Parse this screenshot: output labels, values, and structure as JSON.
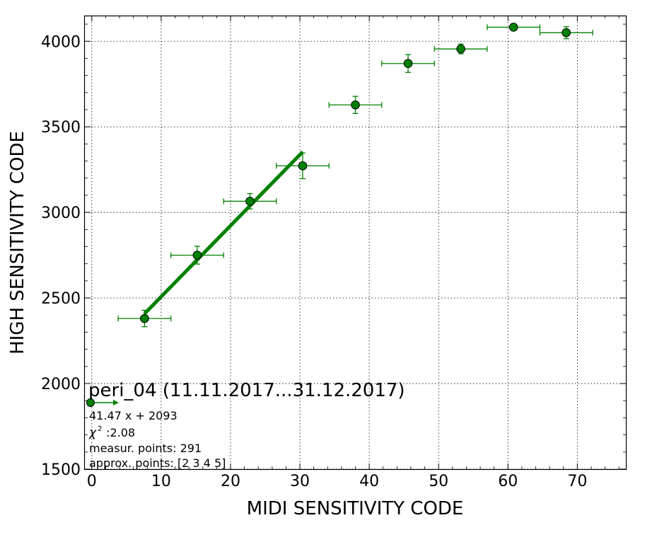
{
  "chart_data": {
    "type": "scatter",
    "title": "peri_04 (11.11.2017...31.12.2017)",
    "xlabel": "MIDI SENSITIVITY CODE",
    "ylabel": "HIGH SENSITIVITY CODE",
    "xlim": [
      -1,
      77
    ],
    "ylim": [
      1500,
      4150
    ],
    "x_ticks": [
      0,
      10,
      20,
      30,
      40,
      50,
      60,
      70
    ],
    "y_ticks": [
      1500,
      2000,
      2500,
      3000,
      3500,
      4000
    ],
    "grid": true,
    "colors": {
      "series": "#008000",
      "marker_edge": "#000000"
    },
    "series": [
      {
        "x": [
          7.6,
          15.2,
          22.8,
          30.4,
          38.0,
          45.6,
          53.2,
          60.8,
          68.4
        ],
        "y": [
          2380,
          2750,
          3065,
          3272,
          3628,
          3870,
          3955,
          4082,
          4050
        ],
        "x_err": [
          3.8,
          3.8,
          3.8,
          3.8,
          3.8,
          3.8,
          3.8,
          3.8,
          3.8
        ],
        "y_err": [
          48,
          52,
          45,
          75,
          50,
          52,
          28,
          10,
          35
        ]
      }
    ],
    "fit": {
      "slope": 41.47,
      "intercept": 2093,
      "x_range": [
        7.6,
        30.4
      ]
    },
    "annotations": {
      "fit_equation": "41.47 x + 2093",
      "chi2_value": " :2.08",
      "measur_points": "measur. points: 291",
      "approx_points": "approx. points: [2 3 4 5]"
    }
  }
}
